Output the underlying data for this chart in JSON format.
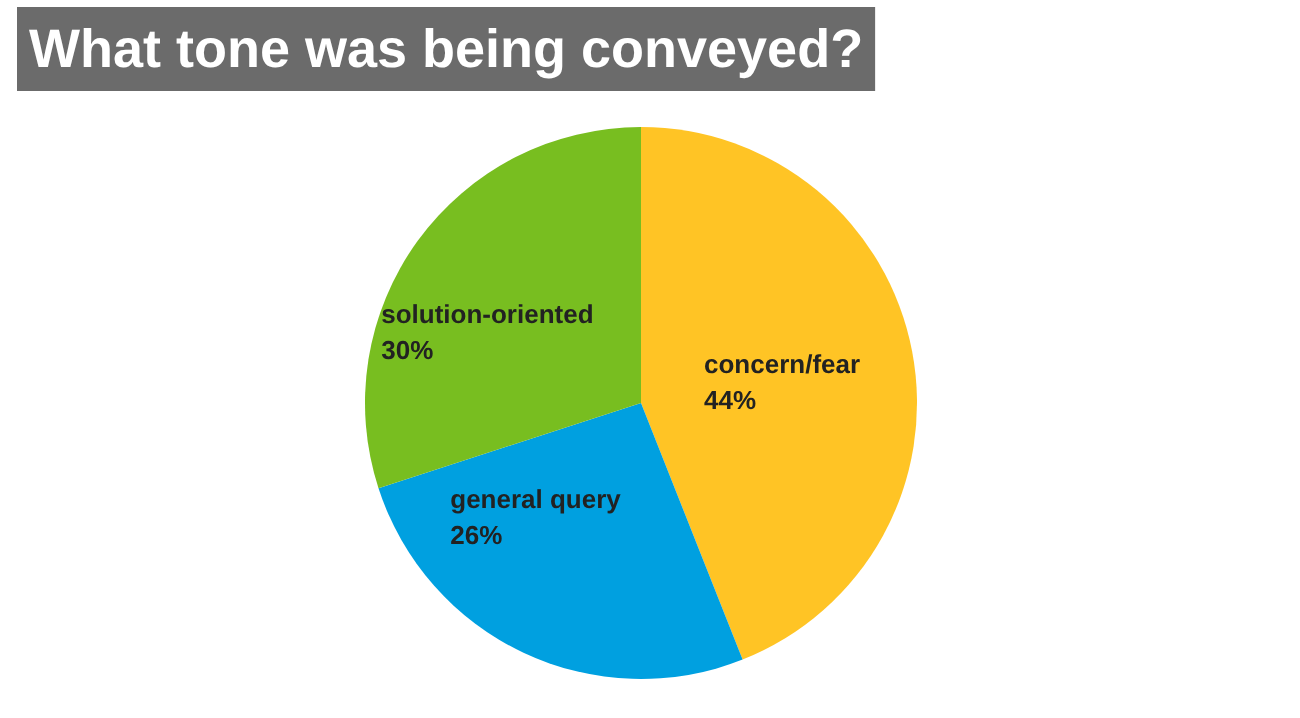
{
  "chart_data": {
    "type": "pie",
    "title": "What tone was being conveyed?",
    "categories": [
      "concern/fear",
      "general query",
      "solution-oriented"
    ],
    "values": [
      44,
      26,
      30
    ],
    "colors": [
      "#ffc425",
      "#00a0e0",
      "#78be20"
    ],
    "value_labels": [
      "44%",
      "26%",
      "30%"
    ]
  }
}
